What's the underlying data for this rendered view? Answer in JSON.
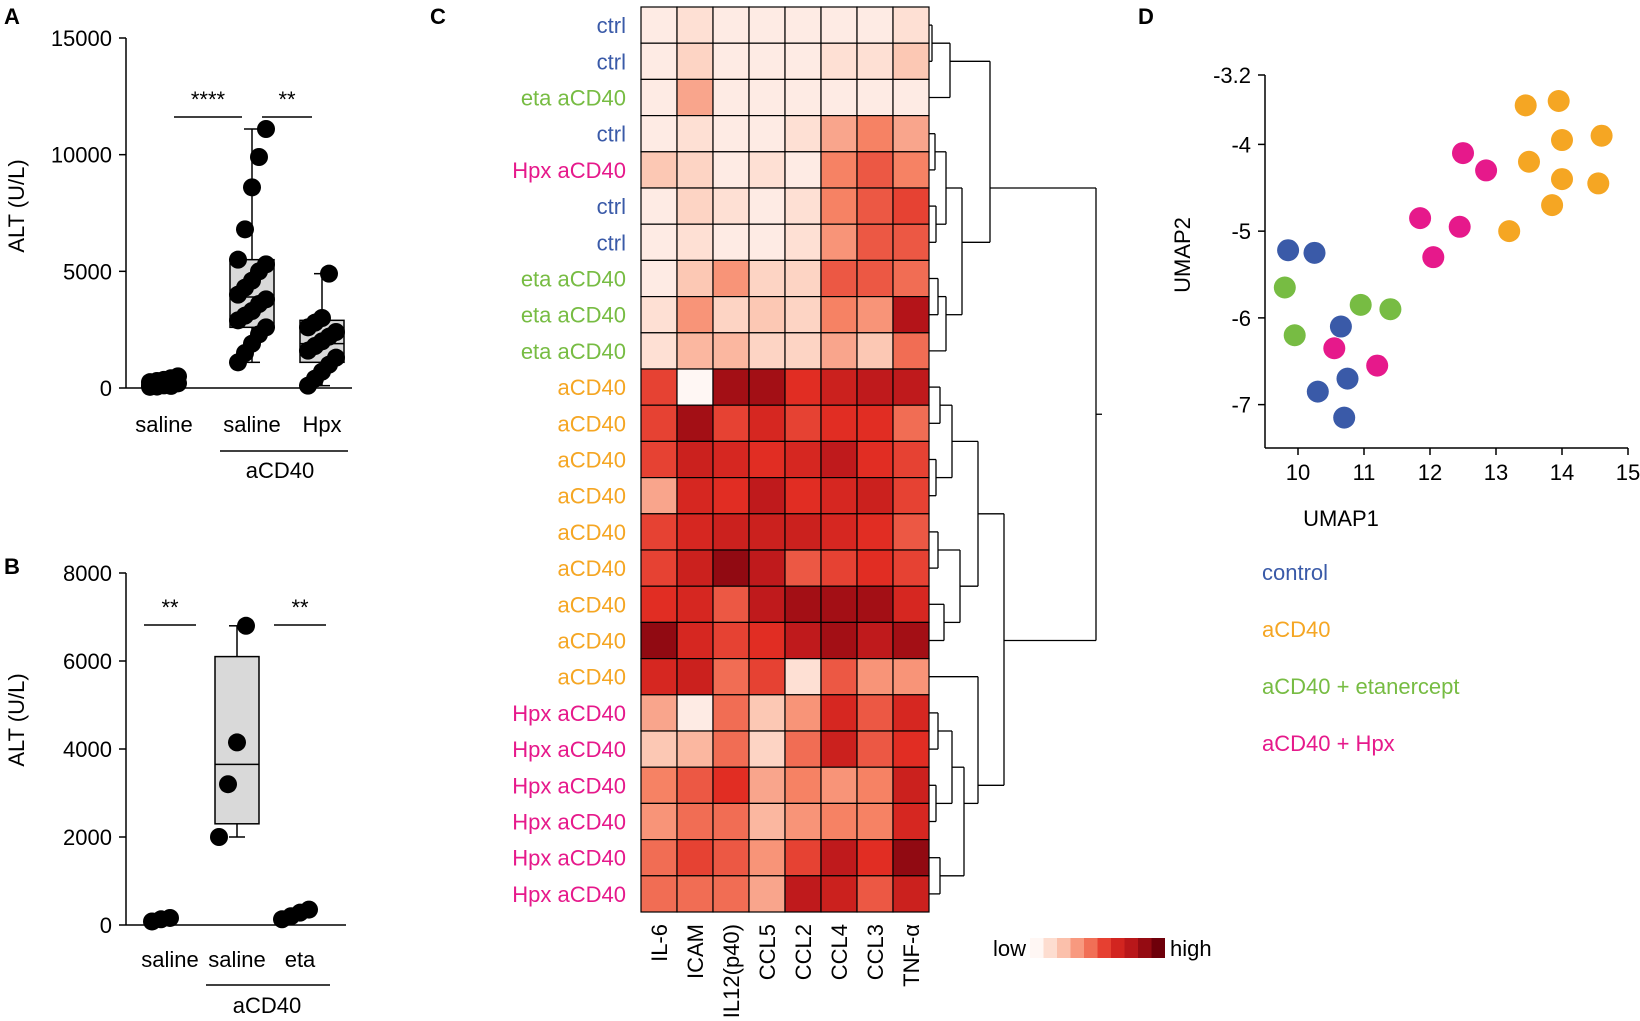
{
  "panels": {
    "a": "A",
    "b": "B",
    "c": "C",
    "d": "D"
  },
  "colors": {
    "control": "#3a5aa8",
    "aCD40": "#f5a623",
    "etanercept": "#77bc43",
    "Hpx": "#e6198b",
    "box_fill": "#d9d9d9",
    "dot": "#000000"
  },
  "chart_data": [
    {
      "id": "A",
      "type": "box",
      "ylabel": "ALT (U/L)",
      "ylim": [
        0,
        15000
      ],
      "yticks": [
        0,
        5000,
        10000,
        15000
      ],
      "categories": [
        "saline",
        "saline",
        "Hpx"
      ],
      "group_label": "aCD40",
      "group_span": [
        1,
        2
      ],
      "significance": [
        {
          "label": "****",
          "between": [
            0,
            1
          ]
        },
        {
          "label": "**",
          "between": [
            1,
            2
          ]
        }
      ],
      "series": [
        {
          "name": "saline",
          "box": null,
          "points": [
            50,
            80,
            110,
            150,
            200,
            250,
            300,
            350,
            420,
            500,
            120,
            60,
            180,
            90
          ]
        },
        {
          "name": "aCD40 saline",
          "box": {
            "min": 1100,
            "q1": 2600,
            "median": 3900,
            "q3": 5500,
            "max": 11100
          },
          "points": [
            1100,
            1500,
            1900,
            2300,
            2600,
            2900,
            3100,
            3300,
            3600,
            3800,
            4000,
            4300,
            4600,
            5000,
            5300,
            5500,
            6800,
            8600,
            9900,
            11100
          ]
        },
        {
          "name": "aCD40 Hpx",
          "box": {
            "min": 100,
            "q1": 1100,
            "median": 1900,
            "q3": 2900,
            "max": 4900
          },
          "points": [
            100,
            400,
            700,
            1000,
            1300,
            1600,
            1800,
            2000,
            2200,
            2400,
            2600,
            2800,
            3000,
            4900
          ]
        }
      ]
    },
    {
      "id": "B",
      "type": "box",
      "ylabel": "ALT (U/L)",
      "ylim": [
        0,
        8000
      ],
      "yticks": [
        0,
        2000,
        4000,
        6000,
        8000
      ],
      "categories": [
        "saline",
        "saline",
        "eta"
      ],
      "group_label": "aCD40",
      "group_span": [
        1,
        2
      ],
      "significance": [
        {
          "label": "**",
          "over": 0
        },
        {
          "label": "**",
          "over": 2
        }
      ],
      "series": [
        {
          "name": "saline",
          "box": null,
          "points": [
            80,
            130,
            160
          ]
        },
        {
          "name": "aCD40 saline",
          "box": {
            "min": 2000,
            "q1": 2300,
            "median": 3650,
            "q3": 6100,
            "max": 6800
          },
          "points": [
            2000,
            3200,
            4150,
            6800
          ]
        },
        {
          "name": "aCD40 eta",
          "box": null,
          "points": [
            130,
            200,
            280,
            350
          ]
        }
      ]
    },
    {
      "id": "C",
      "type": "heatmap",
      "columns": [
        "IL-6",
        "ICAM",
        "IL12(p40)",
        "CCL5",
        "CCL2",
        "CCL4",
        "CCL3",
        "TNF-α"
      ],
      "rows": [
        {
          "label": "ctrl",
          "group": "control"
        },
        {
          "label": "ctrl",
          "group": "control"
        },
        {
          "label": "eta aCD40",
          "group": "etanercept"
        },
        {
          "label": "ctrl",
          "group": "control"
        },
        {
          "label": "Hpx aCD40",
          "group": "Hpx"
        },
        {
          "label": "ctrl",
          "group": "control"
        },
        {
          "label": "ctrl",
          "group": "control"
        },
        {
          "label": "eta aCD40",
          "group": "etanercept"
        },
        {
          "label": "eta aCD40",
          "group": "etanercept"
        },
        {
          "label": "eta aCD40",
          "group": "etanercept"
        },
        {
          "label": "aCD40",
          "group": "aCD40"
        },
        {
          "label": "aCD40",
          "group": "aCD40"
        },
        {
          "label": "aCD40",
          "group": "aCD40"
        },
        {
          "label": "aCD40",
          "group": "aCD40"
        },
        {
          "label": "aCD40",
          "group": "aCD40"
        },
        {
          "label": "aCD40",
          "group": "aCD40"
        },
        {
          "label": "aCD40",
          "group": "aCD40"
        },
        {
          "label": "aCD40",
          "group": "aCD40"
        },
        {
          "label": "aCD40",
          "group": "aCD40"
        },
        {
          "label": "Hpx aCD40",
          "group": "Hpx"
        },
        {
          "label": "Hpx aCD40",
          "group": "Hpx"
        },
        {
          "label": "Hpx aCD40",
          "group": "Hpx"
        },
        {
          "label": "Hpx aCD40",
          "group": "Hpx"
        },
        {
          "label": "Hpx aCD40",
          "group": "Hpx"
        },
        {
          "label": "Hpx aCD40",
          "group": "Hpx"
        }
      ],
      "values": [
        [
          0.05,
          0.1,
          0.05,
          0.05,
          0.05,
          0.05,
          0.05,
          0.1
        ],
        [
          0.05,
          0.15,
          0.05,
          0.05,
          0.05,
          0.1,
          0.1,
          0.2
        ],
        [
          0.05,
          0.3,
          0.05,
          0.05,
          0.05,
          0.05,
          0.05,
          0.05
        ],
        [
          0.05,
          0.1,
          0.05,
          0.05,
          0.1,
          0.3,
          0.4,
          0.3
        ],
        [
          0.2,
          0.15,
          0.05,
          0.1,
          0.05,
          0.4,
          0.5,
          0.4
        ],
        [
          0.05,
          0.15,
          0.1,
          0.05,
          0.1,
          0.4,
          0.5,
          0.55
        ],
        [
          0.05,
          0.1,
          0.05,
          0.05,
          0.1,
          0.35,
          0.5,
          0.5
        ],
        [
          0.05,
          0.2,
          0.35,
          0.15,
          0.15,
          0.5,
          0.5,
          0.45
        ],
        [
          0.1,
          0.35,
          0.15,
          0.2,
          0.15,
          0.4,
          0.35,
          0.8
        ],
        [
          0.1,
          0.25,
          0.25,
          0.15,
          0.15,
          0.3,
          0.2,
          0.45
        ],
        [
          0.55,
          0.0,
          0.85,
          0.85,
          0.6,
          0.7,
          0.75,
          0.75
        ],
        [
          0.55,
          0.85,
          0.55,
          0.65,
          0.55,
          0.6,
          0.6,
          0.45
        ],
        [
          0.55,
          0.7,
          0.65,
          0.6,
          0.65,
          0.75,
          0.6,
          0.55
        ],
        [
          0.3,
          0.65,
          0.6,
          0.75,
          0.6,
          0.65,
          0.7,
          0.55
        ],
        [
          0.55,
          0.65,
          0.7,
          0.7,
          0.7,
          0.65,
          0.6,
          0.5
        ],
        [
          0.55,
          0.7,
          0.9,
          0.75,
          0.5,
          0.55,
          0.6,
          0.55
        ],
        [
          0.6,
          0.65,
          0.5,
          0.75,
          0.85,
          0.85,
          0.85,
          0.65
        ],
        [
          0.9,
          0.65,
          0.55,
          0.6,
          0.75,
          0.85,
          0.75,
          0.85
        ],
        [
          0.65,
          0.7,
          0.45,
          0.55,
          0.1,
          0.5,
          0.35,
          0.35
        ],
        [
          0.3,
          0.05,
          0.45,
          0.2,
          0.35,
          0.65,
          0.5,
          0.65
        ],
        [
          0.2,
          0.25,
          0.45,
          0.15,
          0.45,
          0.7,
          0.5,
          0.6
        ],
        [
          0.4,
          0.5,
          0.6,
          0.3,
          0.4,
          0.35,
          0.4,
          0.7
        ],
        [
          0.35,
          0.45,
          0.45,
          0.25,
          0.35,
          0.4,
          0.4,
          0.65
        ],
        [
          0.45,
          0.55,
          0.5,
          0.35,
          0.55,
          0.75,
          0.6,
          0.9
        ],
        [
          0.45,
          0.45,
          0.45,
          0.3,
          0.75,
          0.7,
          0.5,
          0.7
        ]
      ],
      "legend": {
        "low": "low",
        "high": "high"
      }
    },
    {
      "id": "D",
      "type": "scatter",
      "xlabel": "UMAP1",
      "ylabel": "UMAP2",
      "xlim": [
        9.5,
        15
      ],
      "ylim": [
        -7.5,
        -3.2
      ],
      "y_inverted": true,
      "xticks": [
        10,
        11,
        12,
        13,
        14,
        15
      ],
      "yticks": [
        -3.2,
        -4,
        -5,
        -6,
        -7
      ],
      "series": [
        {
          "name": "control",
          "color_key": "control",
          "points": [
            [
              9.85,
              -5.22
            ],
            [
              10.25,
              -5.25
            ],
            [
              10.65,
              -6.1
            ],
            [
              10.3,
              -6.85
            ],
            [
              10.75,
              -6.7
            ],
            [
              10.7,
              -7.15
            ]
          ]
        },
        {
          "name": "aCD40",
          "color_key": "aCD40",
          "points": [
            [
              13.45,
              -3.55
            ],
            [
              13.95,
              -3.5
            ],
            [
              14.0,
              -3.95
            ],
            [
              14.6,
              -3.9
            ],
            [
              13.5,
              -4.2
            ],
            [
              14.0,
              -4.4
            ],
            [
              14.55,
              -4.45
            ],
            [
              13.85,
              -4.7
            ],
            [
              13.2,
              -5.0
            ]
          ]
        },
        {
          "name": "aCD40 + etanercept",
          "color_key": "etanercept",
          "points": [
            [
              9.8,
              -5.65
            ],
            [
              9.95,
              -6.2
            ],
            [
              10.95,
              -5.85
            ],
            [
              11.4,
              -5.9
            ]
          ]
        },
        {
          "name": "aCD40 + Hpx",
          "color_key": "Hpx",
          "points": [
            [
              12.5,
              -4.1
            ],
            [
              12.85,
              -4.3
            ],
            [
              11.85,
              -4.85
            ],
            [
              12.45,
              -4.95
            ],
            [
              12.05,
              -5.3
            ],
            [
              10.55,
              -6.35
            ],
            [
              11.2,
              -6.55
            ]
          ]
        }
      ],
      "legend": [
        "control",
        "aCD40",
        "aCD40 + etanercept",
        "aCD40 + Hpx"
      ]
    }
  ]
}
